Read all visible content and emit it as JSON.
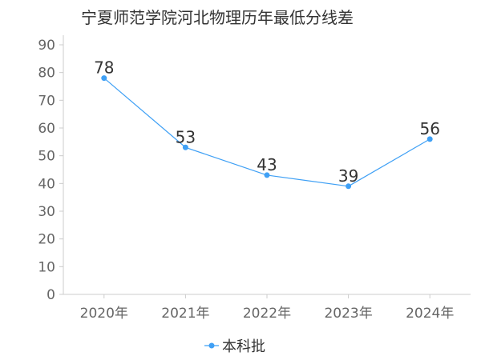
{
  "chart_data": {
    "type": "line",
    "title": "宁夏师范学院河北物理历年最低分线差",
    "categories": [
      "2020年",
      "2021年",
      "2022年",
      "2023年",
      "2024年"
    ],
    "series": [
      {
        "name": "本科批",
        "values": [
          78,
          53,
          43,
          39,
          56
        ],
        "color": "#3fa0f5"
      }
    ],
    "ylim": [
      0,
      90
    ],
    "yticks": [
      0,
      10,
      20,
      30,
      40,
      50,
      60,
      70,
      80,
      90
    ],
    "grid": false,
    "legend_position": "bottom-center",
    "axis_color": "#cccccc"
  }
}
